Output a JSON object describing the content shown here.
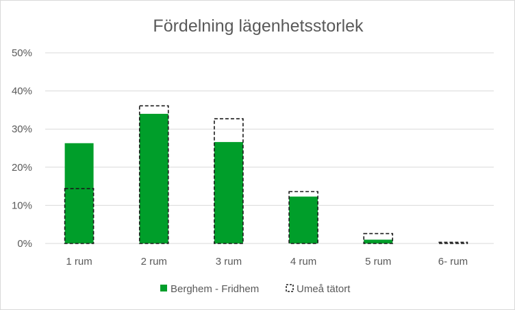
{
  "chart_data": {
    "type": "bar",
    "title": "Fördelning lägenhetsstorlek",
    "categories": [
      "1 rum",
      "2 rum",
      "3 rum",
      "4 rum",
      "5 rum",
      "6- rum"
    ],
    "y_ticks": [
      "0%",
      "10%",
      "20%",
      "30%",
      "40%",
      "50%"
    ],
    "ylim": [
      0,
      50
    ],
    "grid": true,
    "legend_position": "bottom",
    "series": [
      {
        "name": "Berghem - Fridhem",
        "style": "filled",
        "color": "#009e2a",
        "values": [
          26.3,
          34.0,
          26.6,
          12.3,
          1.0,
          0.0
        ]
      },
      {
        "name": "Umeå tätort",
        "style": "dashed-outline",
        "color": "#1a1a1a",
        "values": [
          14.4,
          36.1,
          32.7,
          13.6,
          2.6,
          0.3
        ]
      }
    ]
  }
}
